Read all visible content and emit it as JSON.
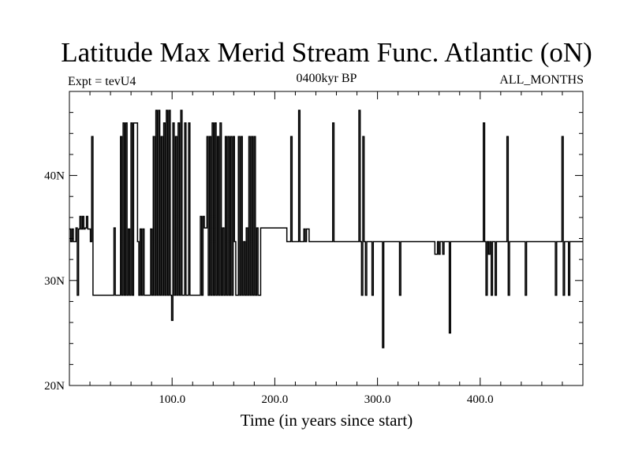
{
  "chart_data": {
    "type": "line",
    "title": "Latitude Max Merid Stream Func. Atlantic (oN)",
    "left_label": "Expt = tevU4",
    "center_label": "0400kyr BP",
    "right_label": "ALL_MONTHS",
    "xlabel": "Time (in years since start)",
    "ylabel": "",
    "xlim": [
      0,
      500
    ],
    "ylim": [
      20,
      48
    ],
    "x_ticks": [
      100,
      200,
      300,
      400
    ],
    "x_tick_labels": [
      "100.0",
      "200.0",
      "300.0",
      "400.0"
    ],
    "y_ticks": [
      20,
      30,
      40
    ],
    "y_tick_labels": [
      "20N",
      "30N",
      "40N"
    ],
    "x_minor_step": 20,
    "y_minor_step": 2,
    "grid": false,
    "step": "mid",
    "series": [
      {
        "values": [
          34.9,
          33.7,
          34.9,
          33.7,
          33.7,
          35.0,
          28.6,
          34.9,
          36.1,
          34.9,
          36.1,
          34.9,
          35.0,
          36.1,
          34.9,
          34.9,
          33.7,
          43.7,
          28.6,
          28.6,
          28.6,
          28.6,
          28.6,
          28.6,
          28.6,
          28.6,
          28.6,
          28.6,
          28.6,
          28.6,
          28.6,
          28.6,
          28.6,
          28.6,
          35.0,
          28.6,
          28.6,
          28.6,
          28.6,
          43.7,
          28.6,
          45.0,
          28.6,
          45.0,
          28.6,
          34.9,
          28.6,
          45.0,
          28.6,
          45.0,
          45.0,
          45.0,
          33.7,
          28.6,
          34.9,
          28.6,
          34.9,
          28.6,
          28.6,
          28.6,
          28.6,
          28.6,
          34.9,
          28.6,
          43.7,
          28.6,
          46.2,
          28.6,
          46.2,
          28.6,
          43.7,
          28.6,
          45.0,
          28.6,
          46.2,
          28.6,
          46.2,
          28.6,
          26.2,
          45.0,
          28.6,
          43.7,
          28.6,
          45.0,
          28.6,
          46.2,
          28.6,
          28.6,
          45.0,
          28.6,
          28.6,
          45.0,
          28.6,
          28.6,
          28.6,
          28.6,
          28.6,
          28.6,
          28.6,
          28.6,
          36.1,
          28.6,
          36.1,
          35.0,
          35.0,
          43.7,
          28.6,
          43.7,
          28.6,
          45.0,
          28.6,
          45.0,
          28.6,
          43.7,
          28.6,
          45.0,
          28.6,
          35.0,
          28.6,
          43.7,
          28.6,
          43.7,
          28.6,
          43.7,
          28.6,
          43.7,
          33.7,
          28.6,
          28.6,
          43.7,
          28.6,
          43.7,
          28.6,
          33.7,
          28.6,
          35.0,
          28.6,
          43.7,
          28.6,
          43.7,
          28.6,
          43.7,
          28.6,
          35.0,
          28.6,
          28.6,
          35.0,
          35.0,
          35.0,
          35.0,
          35.0,
          35.0,
          35.0,
          35.0,
          35.0,
          35.0,
          35.0,
          35.0,
          35.0,
          35.0,
          35.0,
          35.0,
          35.0,
          35.0,
          35.0,
          35.0,
          33.7,
          33.7,
          33.7,
          43.7,
          33.7,
          33.7,
          33.7,
          33.7,
          33.7,
          46.2,
          33.7,
          33.7,
          33.7,
          34.9,
          33.7,
          34.9,
          34.9,
          33.7,
          33.7,
          33.7,
          33.7,
          33.7,
          33.7,
          33.7,
          33.7,
          33.7,
          33.7,
          33.7,
          33.7,
          33.7,
          33.7,
          33.7,
          33.7,
          33.7,
          33.7,
          45.0,
          33.7,
          33.7,
          33.7,
          33.7,
          33.7,
          33.7,
          33.7,
          33.7,
          33.7,
          33.7,
          33.7,
          33.7,
          33.7,
          33.7,
          33.7,
          33.7,
          33.7,
          33.7,
          33.7,
          46.2,
          33.7,
          28.6,
          43.7,
          33.7,
          28.6,
          33.7,
          33.7,
          33.7,
          33.7,
          28.6,
          33.7,
          33.7,
          33.7,
          33.7,
          33.7,
          33.7,
          33.7,
          23.6,
          33.7,
          33.7,
          33.7,
          33.7,
          33.7,
          33.7,
          33.7,
          33.7,
          33.7,
          33.7,
          33.7,
          33.7,
          28.6,
          33.7,
          33.7,
          33.7,
          33.7,
          33.7,
          33.7,
          33.7,
          33.7,
          33.7,
          33.7,
          33.7,
          33.7,
          33.7,
          33.7,
          33.7,
          33.7,
          33.7,
          33.7,
          33.7,
          33.7,
          33.7,
          33.7,
          33.7,
          33.7,
          33.7,
          33.7,
          32.5,
          32.5,
          33.7,
          32.5,
          33.7,
          33.7,
          32.5,
          33.7,
          33.7,
          33.7,
          33.7,
          25.0,
          33.7,
          33.7,
          33.7,
          33.7,
          33.7,
          33.7,
          33.7,
          33.7,
          33.7,
          33.7,
          33.7,
          33.7,
          33.7,
          33.7,
          33.7,
          33.7,
          33.7,
          33.7,
          33.7,
          33.7,
          33.7,
          33.7,
          33.7,
          33.7,
          33.7,
          45.0,
          33.7,
          28.6,
          33.7,
          32.5,
          33.7,
          28.6,
          33.7,
          33.7,
          28.6,
          33.7,
          33.7,
          33.7,
          33.7,
          33.7,
          33.7,
          33.7,
          33.7,
          43.7,
          28.6,
          33.7,
          33.7,
          33.7,
          33.7,
          33.7,
          33.7,
          33.7,
          33.7,
          33.7,
          33.7,
          33.7,
          33.7,
          28.6,
          33.7,
          33.7,
          33.7,
          33.7,
          33.7,
          33.7,
          33.7,
          33.7,
          33.7,
          33.7,
          33.7,
          33.7,
          33.7,
          33.7,
          33.7,
          33.7,
          33.7,
          33.7,
          33.7,
          33.7,
          33.7,
          33.7,
          28.6,
          33.7,
          33.7,
          33.7,
          33.7,
          43.7,
          28.6,
          33.7,
          33.7,
          33.7,
          28.6,
          33.7,
          33.7,
          33.7,
          33.7,
          33.7,
          33.7,
          33.7,
          33.7,
          33.7,
          33.7
        ]
      }
    ]
  }
}
